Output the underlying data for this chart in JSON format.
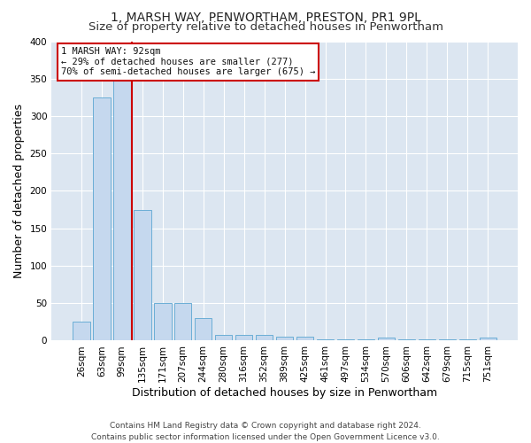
{
  "title": "1, MARSH WAY, PENWORTHAM, PRESTON, PR1 9PL",
  "subtitle": "Size of property relative to detached houses in Penwortham",
  "xlabel": "Distribution of detached houses by size in Penwortham",
  "ylabel": "Number of detached properties",
  "footer_line1": "Contains HM Land Registry data © Crown copyright and database right 2024.",
  "footer_line2": "Contains public sector information licensed under the Open Government Licence v3.0.",
  "bar_color": "#c5d8ee",
  "bar_edge_color": "#6baed6",
  "fig_bg_color": "#ffffff",
  "plot_bg_color": "#dce6f1",
  "vline_color": "#cc0000",
  "annotation_line1": "1 MARSH WAY: 92sqm",
  "annotation_line2": "← 29% of detached houses are smaller (277)",
  "annotation_line3": "70% of semi-detached houses are larger (675) →",
  "categories": [
    "26sqm",
    "63sqm",
    "99sqm",
    "135sqm",
    "171sqm",
    "207sqm",
    "244sqm",
    "280sqm",
    "316sqm",
    "352sqm",
    "389sqm",
    "425sqm",
    "461sqm",
    "497sqm",
    "534sqm",
    "570sqm",
    "606sqm",
    "642sqm",
    "679sqm",
    "715sqm",
    "751sqm"
  ],
  "values": [
    25,
    325,
    360,
    175,
    50,
    50,
    30,
    8,
    8,
    8,
    5,
    5,
    2,
    2,
    2,
    4,
    2,
    2,
    2,
    2,
    4
  ],
  "ylim": [
    0,
    400
  ],
  "yticks": [
    0,
    50,
    100,
    150,
    200,
    250,
    300,
    350,
    400
  ],
  "vline_x_index": 2.5,
  "grid_color": "#ffffff",
  "title_fontsize": 10,
  "subtitle_fontsize": 9.5,
  "label_fontsize": 9,
  "tick_fontsize": 7.5,
  "footer_fontsize": 6.5
}
